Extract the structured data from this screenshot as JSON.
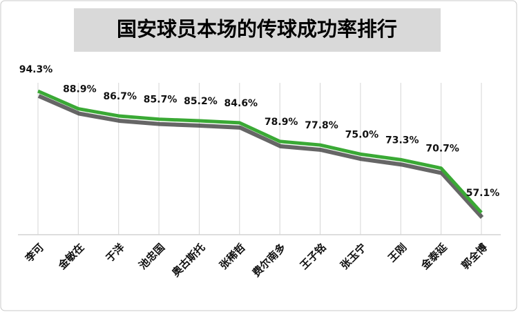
{
  "chart_data": {
    "type": "line",
    "title": "国安球员本场的传球成功率排行",
    "categories": [
      "李可",
      "金敏在",
      "于洋",
      "池忠国",
      "奥古斯托",
      "张稀哲",
      "费尔南多",
      "王子铭",
      "张玉宁",
      "王刚",
      "金泰延",
      "郭全博"
    ],
    "values": [
      94.3,
      88.9,
      86.7,
      85.7,
      85.2,
      84.6,
      78.9,
      77.8,
      75.0,
      73.3,
      70.7,
      57.1
    ],
    "value_labels": [
      "94.3%",
      "88.9%",
      "86.7%",
      "85.7%",
      "85.2%",
      "84.6%",
      "78.9%",
      "77.8%",
      "75.0%",
      "73.3%",
      "70.7%",
      "57.1%"
    ],
    "color": "#3aa935"
  }
}
